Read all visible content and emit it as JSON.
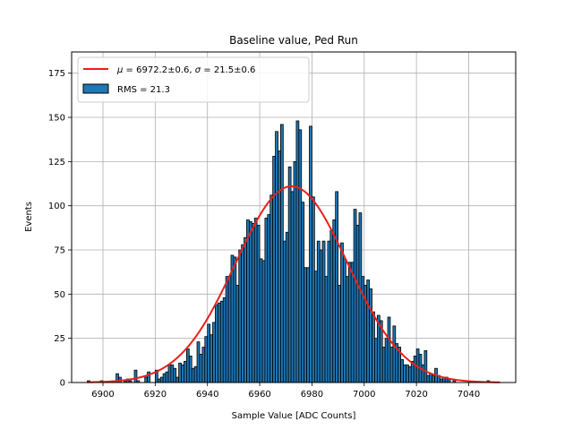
{
  "chart_data": {
    "type": "bar",
    "title": "Baseline value, Ped Run",
    "xlabel": "Sample Value [ADC Counts]",
    "ylabel": "Events",
    "xlim": [
      6888,
      7058
    ],
    "ylim": [
      0,
      187
    ],
    "xticks": [
      6900,
      6920,
      6940,
      6960,
      6980,
      7000,
      7020,
      7040
    ],
    "yticks": [
      0,
      25,
      50,
      75,
      100,
      125,
      150,
      175
    ],
    "grid": true,
    "legend_position": "top-left",
    "bin_width": 1,
    "bin_start": 6894,
    "bar_color": "#1f77b4",
    "bar_edge_color": "#000000",
    "series": [
      {
        "name": "RMS = 21.3",
        "kind": "histogram",
        "values": [
          1,
          0,
          0,
          0,
          0,
          1,
          0,
          0,
          0,
          0,
          0,
          5,
          3,
          0,
          1,
          2,
          1,
          0,
          7,
          1,
          0,
          0,
          3,
          6,
          0,
          0,
          7,
          2,
          3,
          5,
          6,
          10,
          10,
          8,
          3,
          11,
          10,
          12,
          19,
          15,
          8,
          9,
          23,
          16,
          20,
          26,
          33,
          27,
          34,
          44,
          45,
          46,
          48,
          60,
          60,
          72,
          71,
          55,
          75,
          78,
          82,
          92,
          91,
          90,
          93,
          89,
          70,
          69,
          93,
          95,
          106,
          128,
          142,
          131,
          146,
          80,
          85,
          122,
          108,
          125,
          148,
          143,
          102,
          65,
          65,
          145,
          105,
          63,
          80,
          75,
          80,
          60,
          80,
          86,
          92,
          108,
          55,
          79,
          70,
          60,
          68,
          68,
          98,
          89,
          96,
          60,
          55,
          58,
          53,
          40,
          25,
          38,
          35,
          20,
          25,
          37,
          20,
          32,
          22,
          20,
          13,
          10,
          10,
          9,
          12,
          15,
          19,
          16,
          10,
          18,
          4,
          5,
          4,
          8,
          4,
          2,
          3,
          3,
          2,
          0,
          1,
          0,
          0,
          0,
          0,
          0,
          0,
          0,
          0,
          0,
          0,
          0,
          0,
          1,
          0,
          0,
          0,
          0,
          0
        ]
      },
      {
        "name": "μ = 6972.2±0.6, σ = 21.5±0.6",
        "kind": "gaussian_fit",
        "mu": 6972.2,
        "sigma": 21.5,
        "amplitude": 111,
        "x_range": [
          6894,
          7052
        ],
        "color": "#e8201a"
      }
    ]
  },
  "legend": {
    "fit_label_mu": "μ",
    "fit_label_mu_value": " = 6972.2±0.6, ",
    "fit_label_sigma": "σ",
    "fit_label_sigma_value": " = 21.5±0.6",
    "hist_label": "RMS = 21.3"
  }
}
